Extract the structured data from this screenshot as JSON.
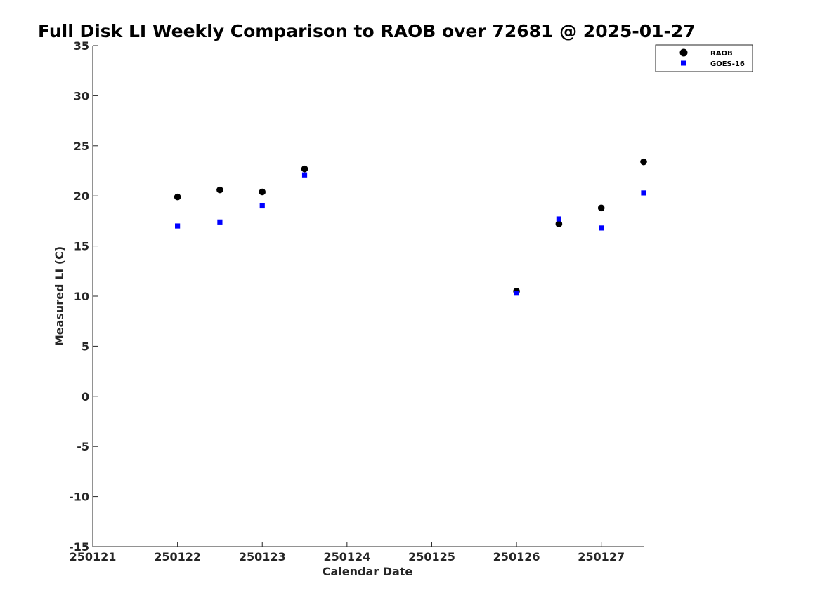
{
  "chart_data": {
    "type": "scatter",
    "title": "Full Disk LI Weekly Comparison to RAOB over 72681 @ 2025-01-27",
    "xlabel": "Calendar Date",
    "ylabel": "Measured LI (C)",
    "xlim": [
      250121,
      250127.5
    ],
    "ylim": [
      -15,
      35
    ],
    "xticks": [
      250121,
      250122,
      250123,
      250124,
      250125,
      250126,
      250127
    ],
    "xtick_labels": [
      "250121",
      "250122",
      "250123",
      "250124",
      "250125",
      "250126",
      "250127"
    ],
    "yticks": [
      -15,
      -10,
      -5,
      0,
      5,
      10,
      15,
      20,
      25,
      30,
      35
    ],
    "ytick_labels": [
      "-15",
      "-10",
      "-5",
      "0",
      "5",
      "10",
      "15",
      "20",
      "25",
      "30",
      "35"
    ],
    "grid": false,
    "legend_position": "top-right",
    "series": [
      {
        "name": "RAOB",
        "marker": "circle",
        "color": "#000000",
        "x": [
          250122,
          250122.5,
          250123,
          250123.5,
          250126,
          250126.5,
          250127,
          250127.5
        ],
        "y": [
          19.9,
          20.6,
          20.4,
          22.7,
          10.5,
          17.2,
          18.8,
          23.4
        ]
      },
      {
        "name": "GOES-16",
        "marker": "square",
        "color": "#0000ff",
        "x": [
          250122,
          250122.5,
          250123,
          250123.5,
          250126,
          250126.5,
          250127,
          250127.5
        ],
        "y": [
          17.0,
          17.4,
          19.0,
          22.1,
          10.3,
          17.7,
          16.8,
          20.3
        ]
      }
    ]
  }
}
